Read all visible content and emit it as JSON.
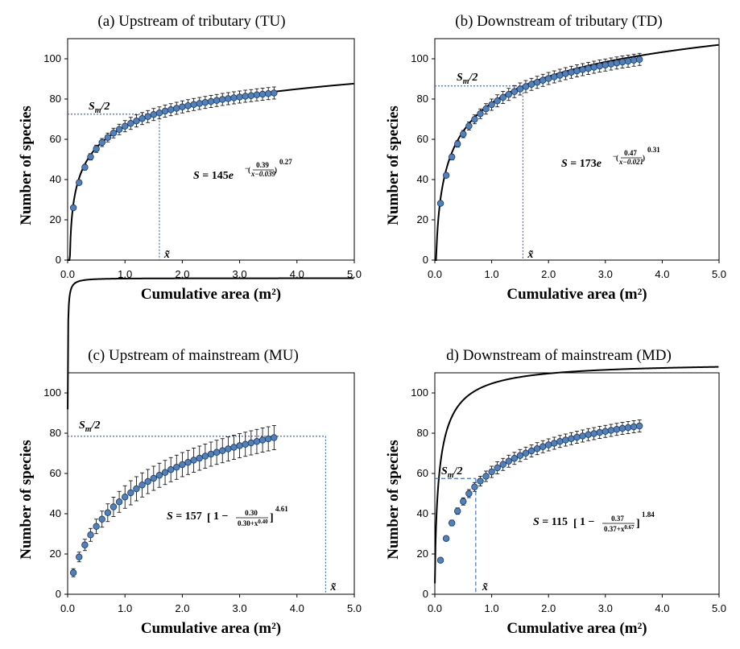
{
  "chart_data": [
    {
      "type": "scatter",
      "title": "(a) Upstream of tributary (TU)",
      "xlabel": "Cumulative area (m²)",
      "ylabel": "Number of species",
      "xlim": [
        0,
        5
      ],
      "ylim": [
        0,
        110
      ],
      "x_ticks": [
        "0.0",
        "1.0",
        "2.0",
        "3.0",
        "4.0",
        "5.0"
      ],
      "y_ticks": [
        "0",
        "20",
        "40",
        "60",
        "80",
        "100"
      ],
      "grid": false,
      "points_x": [
        0.1,
        0.2,
        0.3,
        0.4,
        0.5,
        0.6,
        0.7,
        0.8,
        0.9,
        1.0,
        1.1,
        1.2,
        1.3,
        1.4,
        1.5,
        1.6,
        1.7,
        1.8,
        1.9,
        2.0,
        2.1,
        2.2,
        2.3,
        2.4,
        2.5,
        2.6,
        2.7,
        2.8,
        2.9,
        3.0,
        3.1,
        3.2,
        3.3,
        3.4,
        3.5,
        3.6
      ],
      "points_y": [
        26.0,
        38.5,
        46.1,
        51.3,
        55.3,
        58.4,
        60.9,
        63.1,
        64.9,
        66.5,
        67.9,
        69.1,
        70.3,
        71.3,
        72.3,
        73.1,
        74.0,
        74.7,
        75.4,
        76.1,
        76.7,
        77.3,
        77.8,
        78.3,
        78.8,
        79.3,
        79.8,
        80.2,
        80.6,
        81.0,
        81.4,
        81.7,
        82.1,
        82.4,
        82.7,
        83.0
      ],
      "error_bars": "±3",
      "fit": {
        "model": "exp",
        "a": 145,
        "b": 0.39,
        "c": 0.039,
        "p": 0.27
      },
      "equation": {
        "prefix": "S",
        "eq_sign": " = ",
        "coef": "145",
        "base": "e",
        "neg": "−",
        "num": "0.39",
        "den": "x−0.039",
        "exp": "0.27"
      },
      "half_line": {
        "x": 1.6,
        "y": 72.5
      },
      "sm_label": "S",
      "sm_sub": "m",
      "sm_tail": "/2",
      "x_tilde": "x̃"
    },
    {
      "type": "scatter",
      "title": "(b) Downstream of tributary (TD)",
      "xlabel": "Cumulative area (m²)",
      "ylabel": "Number of species",
      "xlim": [
        0,
        5
      ],
      "ylim": [
        0,
        110
      ],
      "x_ticks": [
        "0.0",
        "1.0",
        "2.0",
        "3.0",
        "4.0",
        "5.0"
      ],
      "y_ticks": [
        "0",
        "20",
        "40",
        "60",
        "80",
        "100"
      ],
      "grid": false,
      "points_x": [
        0.1,
        0.2,
        0.3,
        0.4,
        0.5,
        0.6,
        0.7,
        0.8,
        0.9,
        1.0,
        1.1,
        1.2,
        1.3,
        1.4,
        1.5,
        1.6,
        1.7,
        1.8,
        1.9,
        2.0,
        2.1,
        2.2,
        2.3,
        2.4,
        2.5,
        2.6,
        2.7,
        2.8,
        2.9,
        3.0,
        3.1,
        3.2,
        3.3,
        3.4,
        3.5,
        3.6
      ],
      "points_y": [
        28.2,
        42.1,
        51.2,
        57.7,
        62.6,
        66.6,
        69.9,
        72.7,
        75.1,
        77.2,
        79.1,
        80.8,
        82.3,
        83.7,
        85.0,
        86.2,
        87.3,
        88.3,
        89.3,
        90.2,
        91.0,
        91.8,
        92.6,
        93.3,
        94.0,
        94.6,
        95.2,
        95.8,
        96.4,
        96.9,
        97.4,
        97.9,
        98.4,
        98.8,
        99.3,
        99.7
      ],
      "error_bars": "±3",
      "fit": {
        "model": "exp",
        "a": 173,
        "b": 0.47,
        "c": 0.021,
        "p": 0.31
      },
      "equation": {
        "prefix": "S",
        "eq_sign": " = ",
        "coef": "173",
        "base": "e",
        "neg": "−",
        "num": "0.47",
        "den": "x−0.021",
        "exp": "0.31"
      },
      "half_line": {
        "x": 1.55,
        "y": 86.5
      },
      "sm_label": "S",
      "sm_sub": "m",
      "sm_tail": "/2",
      "x_tilde": "x̃"
    },
    {
      "type": "scatter",
      "title": "(c) Upstream of mainstream (MU)",
      "xlabel": "Cumulative area (m²)",
      "ylabel": "Number of species",
      "xlim": [
        0,
        5
      ],
      "ylim": [
        0,
        110
      ],
      "x_ticks": [
        "0.0",
        "1.0",
        "2.0",
        "3.0",
        "4.0",
        "5.0"
      ],
      "y_ticks": [
        "0",
        "20",
        "40",
        "60",
        "80",
        "100"
      ],
      "grid": false,
      "points_x": [
        0.1,
        0.2,
        0.3,
        0.4,
        0.5,
        0.6,
        0.7,
        0.8,
        0.9,
        1.0,
        1.1,
        1.2,
        1.3,
        1.4,
        1.5,
        1.6,
        1.7,
        1.8,
        1.9,
        2.0,
        2.1,
        2.2,
        2.3,
        2.4,
        2.5,
        2.6,
        2.7,
        2.8,
        2.9,
        3.0,
        3.1,
        3.2,
        3.3,
        3.4,
        3.5,
        3.6
      ],
      "points_y": [
        10.7,
        18.5,
        24.5,
        29.5,
        33.7,
        37.3,
        40.5,
        43.4,
        45.9,
        48.3,
        50.4,
        52.4,
        54.3,
        56.0,
        57.6,
        59.1,
        60.5,
        61.9,
        63.1,
        64.4,
        65.5,
        66.6,
        67.6,
        68.6,
        69.6,
        70.5,
        71.3,
        72.2,
        73.0,
        73.8,
        74.5,
        75.2,
        75.9,
        76.6,
        77.2,
        77.8
      ],
      "error_bars": "±6",
      "fit": {
        "model": "pow",
        "a": 157,
        "b": 0.3,
        "c": 0.4,
        "p": 4.61
      },
      "equation": {
        "prefix": "S",
        "eq_sign": " = ",
        "coef": "157",
        "one": "1 −",
        "num": "0.30",
        "den": "0.30+x",
        "den_exp": "0.40",
        "exp": "4.61"
      },
      "half_line": {
        "x": 4.5,
        "y": 78.5
      },
      "sm_label": "S",
      "sm_sub": "m",
      "sm_tail": "/2",
      "x_tilde": "x̃"
    },
    {
      "type": "scatter",
      "title": "d) Downstream of mainstream (MD)",
      "xlabel": "Cumulative area (m²)",
      "ylabel": "Number of species",
      "xlim": [
        0,
        5
      ],
      "ylim": [
        0,
        110
      ],
      "x_ticks": [
        "0.0",
        "1.0",
        "2.0",
        "3.0",
        "4.0",
        "5.0"
      ],
      "y_ticks": [
        "0",
        "20",
        "40",
        "60",
        "80",
        "100"
      ],
      "grid": false,
      "points_x": [
        0.1,
        0.2,
        0.3,
        0.4,
        0.5,
        0.6,
        0.7,
        0.8,
        0.9,
        1.0,
        1.1,
        1.2,
        1.3,
        1.4,
        1.5,
        1.6,
        1.7,
        1.8,
        1.9,
        2.0,
        2.1,
        2.2,
        2.3,
        2.4,
        2.5,
        2.6,
        2.7,
        2.8,
        2.9,
        3.0,
        3.1,
        3.2,
        3.3,
        3.4,
        3.5,
        3.6
      ],
      "points_y": [
        16.9,
        27.7,
        35.4,
        41.3,
        46.1,
        50.0,
        53.3,
        56.2,
        58.6,
        60.8,
        62.8,
        64.5,
        66.1,
        67.5,
        68.9,
        70.1,
        71.2,
        72.3,
        73.3,
        74.2,
        75.0,
        75.9,
        76.6,
        77.3,
        78.0,
        78.6,
        79.3,
        79.8,
        80.4,
        80.9,
        81.4,
        81.9,
        82.4,
        82.8,
        83.2,
        83.6
      ],
      "error_bars": "±3",
      "fit": {
        "model": "pow",
        "a": 115,
        "b": 0.37,
        "c": 0.67,
        "p": 1.84
      },
      "equation": {
        "prefix": "S",
        "eq_sign": " = ",
        "coef": "115",
        "one": "1 −",
        "num": "0.37",
        "den": "0.37+x",
        "den_exp": "0.67",
        "exp": "1.84"
      },
      "half_line": {
        "x": 0.72,
        "y": 57.5
      },
      "sm_label": "S",
      "sm_sub": "m",
      "sm_tail": "/2",
      "x_tilde": "x̃"
    }
  ],
  "colors": {
    "marker_fill": "#4f81bd",
    "marker_stroke": "#1f3864",
    "curve": "#000000",
    "guide_line": "#4472c4"
  }
}
